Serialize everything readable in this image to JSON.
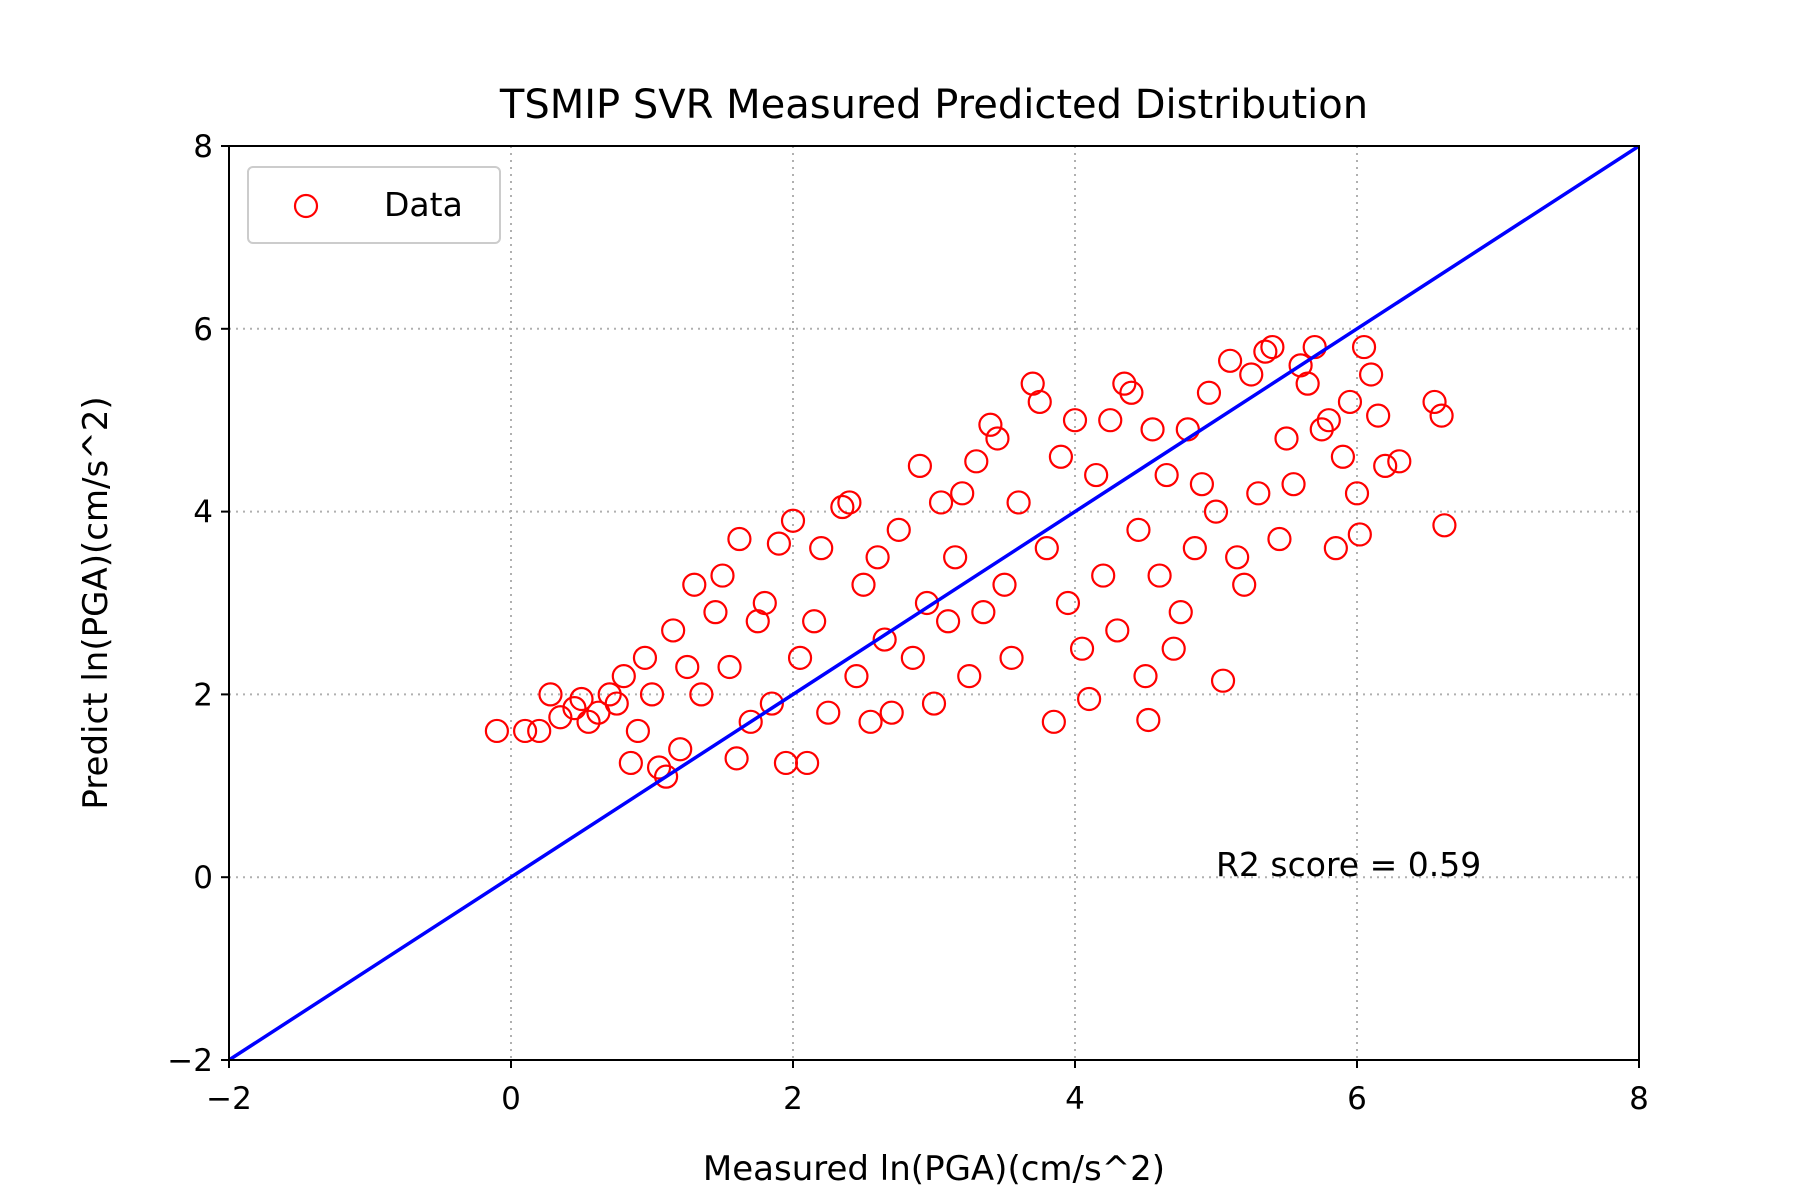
{
  "chart_data": {
    "type": "scatter",
    "title": "TSMIP SVR Measured Predicted Distribution",
    "xlabel": "Measured ln(PGA)(cm/s^2)",
    "ylabel": "Predict ln(PGA)(cm/s^2)",
    "xlim": [
      -2,
      8
    ],
    "ylim": [
      -2,
      8
    ],
    "xticks": [
      -2,
      0,
      2,
      4,
      6,
      8
    ],
    "yticks": [
      -2,
      0,
      2,
      4,
      6,
      8
    ],
    "xtick_labels": [
      "−2",
      "0",
      "2",
      "4",
      "6",
      "8"
    ],
    "ytick_labels": [
      "−2",
      "0",
      "2",
      "4",
      "6",
      "8"
    ],
    "grid": true,
    "legend_position": "top-left",
    "marker": "hollow-circle",
    "series": [
      {
        "name": "Data",
        "color": "#ff0000",
        "points": [
          [
            -0.1,
            1.6
          ],
          [
            0.1,
            1.6
          ],
          [
            0.2,
            1.6
          ],
          [
            0.28,
            2.0
          ],
          [
            0.35,
            1.75
          ],
          [
            0.45,
            1.85
          ],
          [
            0.5,
            1.95
          ],
          [
            0.55,
            1.7
          ],
          [
            0.62,
            1.8
          ],
          [
            0.7,
            2.0
          ],
          [
            0.75,
            1.9
          ],
          [
            0.8,
            2.2
          ],
          [
            0.85,
            1.25
          ],
          [
            0.9,
            1.6
          ],
          [
            0.95,
            2.4
          ],
          [
            1.0,
            2.0
          ],
          [
            1.05,
            1.2
          ],
          [
            1.1,
            1.1
          ],
          [
            1.15,
            2.7
          ],
          [
            1.2,
            1.4
          ],
          [
            1.25,
            2.3
          ],
          [
            1.3,
            3.2
          ],
          [
            1.35,
            2.0
          ],
          [
            1.45,
            2.9
          ],
          [
            1.5,
            3.3
          ],
          [
            1.55,
            2.3
          ],
          [
            1.6,
            1.3
          ],
          [
            1.62,
            3.7
          ],
          [
            1.7,
            1.7
          ],
          [
            1.75,
            2.8
          ],
          [
            1.8,
            3.0
          ],
          [
            1.85,
            1.9
          ],
          [
            1.9,
            3.65
          ],
          [
            1.95,
            1.25
          ],
          [
            2.0,
            3.9
          ],
          [
            2.05,
            2.4
          ],
          [
            2.1,
            1.25
          ],
          [
            2.15,
            2.8
          ],
          [
            2.2,
            3.6
          ],
          [
            2.25,
            1.8
          ],
          [
            2.35,
            4.05
          ],
          [
            2.4,
            4.1
          ],
          [
            2.45,
            2.2
          ],
          [
            2.5,
            3.2
          ],
          [
            2.55,
            1.7
          ],
          [
            2.6,
            3.5
          ],
          [
            2.65,
            2.6
          ],
          [
            2.7,
            1.8
          ],
          [
            2.75,
            3.8
          ],
          [
            2.85,
            2.4
          ],
          [
            2.9,
            4.5
          ],
          [
            2.95,
            3.0
          ],
          [
            3.0,
            1.9
          ],
          [
            3.05,
            4.1
          ],
          [
            3.1,
            2.8
          ],
          [
            3.15,
            3.5
          ],
          [
            3.2,
            4.2
          ],
          [
            3.25,
            2.2
          ],
          [
            3.3,
            4.55
          ],
          [
            3.35,
            2.9
          ],
          [
            3.4,
            4.95
          ],
          [
            3.45,
            4.8
          ],
          [
            3.5,
            3.2
          ],
          [
            3.55,
            2.4
          ],
          [
            3.6,
            4.1
          ],
          [
            3.7,
            5.4
          ],
          [
            3.75,
            5.2
          ],
          [
            3.8,
            3.6
          ],
          [
            3.85,
            1.7
          ],
          [
            3.9,
            4.6
          ],
          [
            3.95,
            3.0
          ],
          [
            4.0,
            5.0
          ],
          [
            4.05,
            2.5
          ],
          [
            4.1,
            1.95
          ],
          [
            4.15,
            4.4
          ],
          [
            4.2,
            3.3
          ],
          [
            4.25,
            5.0
          ],
          [
            4.3,
            2.7
          ],
          [
            4.35,
            5.4
          ],
          [
            4.4,
            5.3
          ],
          [
            4.45,
            3.8
          ],
          [
            4.5,
            2.2
          ],
          [
            4.52,
            1.72
          ],
          [
            4.55,
            4.9
          ],
          [
            4.6,
            3.3
          ],
          [
            4.65,
            4.4
          ],
          [
            4.7,
            2.5
          ],
          [
            4.75,
            2.9
          ],
          [
            4.8,
            4.9
          ],
          [
            4.85,
            3.6
          ],
          [
            4.9,
            4.3
          ],
          [
            4.95,
            5.3
          ],
          [
            5.0,
            4.0
          ],
          [
            5.05,
            2.15
          ],
          [
            5.1,
            5.65
          ],
          [
            5.15,
            3.5
          ],
          [
            5.2,
            3.2
          ],
          [
            5.25,
            5.5
          ],
          [
            5.3,
            4.2
          ],
          [
            5.35,
            5.75
          ],
          [
            5.4,
            5.8
          ],
          [
            5.45,
            3.7
          ],
          [
            5.5,
            4.8
          ],
          [
            5.55,
            4.3
          ],
          [
            5.6,
            5.6
          ],
          [
            5.65,
            5.4
          ],
          [
            5.7,
            5.8
          ],
          [
            5.75,
            4.9
          ],
          [
            5.8,
            5.0
          ],
          [
            5.85,
            3.6
          ],
          [
            5.9,
            4.6
          ],
          [
            5.95,
            5.2
          ],
          [
            6.0,
            4.2
          ],
          [
            6.02,
            3.75
          ],
          [
            6.05,
            5.8
          ],
          [
            6.1,
            5.5
          ],
          [
            6.15,
            5.05
          ],
          [
            6.2,
            4.5
          ],
          [
            6.3,
            4.55
          ],
          [
            6.55,
            5.2
          ],
          [
            6.6,
            5.05
          ],
          [
            6.62,
            3.85
          ]
        ]
      }
    ],
    "reference_line": {
      "from": [
        -2,
        -2
      ],
      "to": [
        8,
        8
      ],
      "color": "#0000ff"
    },
    "annotation": "R2 score = 0.59"
  }
}
